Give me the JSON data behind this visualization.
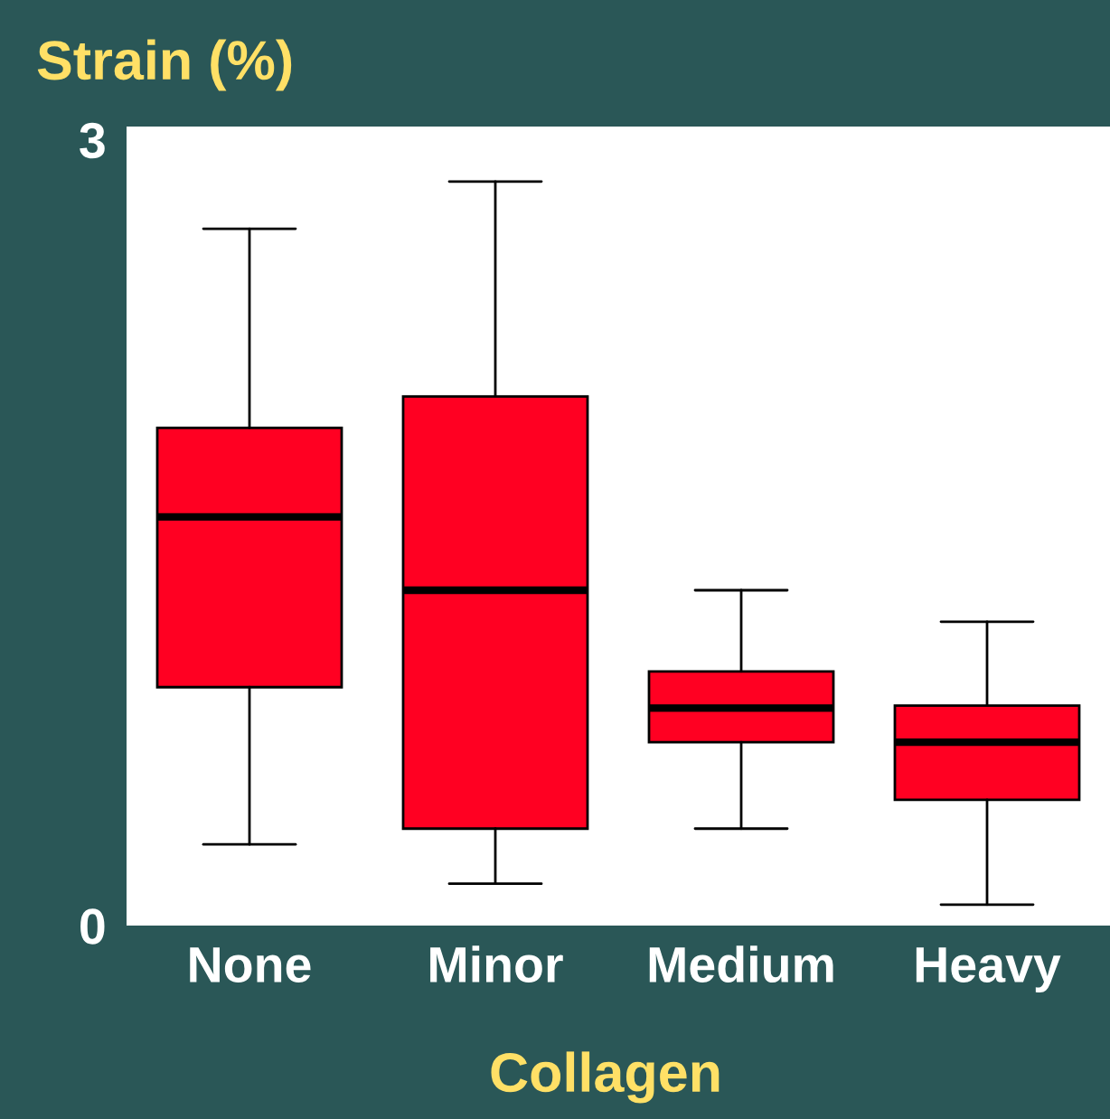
{
  "chart_data": {
    "type": "box",
    "xlabel": "Collagen",
    "ylabel": "Strain (%)",
    "categories": [
      "None",
      "Minor",
      "Medium",
      "Heavy"
    ],
    "boxes": [
      {
        "low": 0.31,
        "q1": 0.91,
        "median": 1.56,
        "q3": 1.9,
        "high": 2.66
      },
      {
        "low": 0.16,
        "q1": 0.37,
        "median": 1.28,
        "q3": 2.02,
        "high": 2.84
      },
      {
        "low": 0.37,
        "q1": 0.7,
        "median": 0.83,
        "q3": 0.97,
        "high": 1.28
      },
      {
        "low": 0.08,
        "q1": 0.48,
        "median": 0.7,
        "q3": 0.84,
        "high": 1.16
      }
    ],
    "color": "#ff0022",
    "ylim": [
      0,
      3.05
    ],
    "yticks": [
      0,
      3
    ],
    "grid": false,
    "legend": false
  }
}
